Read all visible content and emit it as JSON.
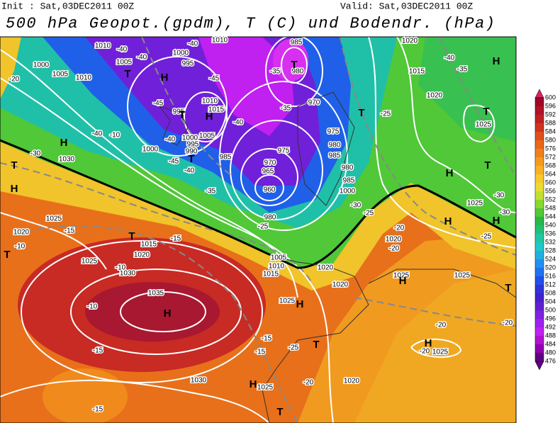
{
  "header": {
    "init": "Init : Sat,03DEC2011 00Z",
    "valid": "Valid: Sat,03DEC2011 00Z",
    "title": "500 hPa Geopot.(gpdm), T (C) und Bodendr. (hPa)"
  },
  "legend": {
    "ticks": [
      600,
      596,
      592,
      588,
      584,
      580,
      576,
      572,
      568,
      564,
      560,
      556,
      552,
      548,
      544,
      540,
      536,
      532,
      528,
      524,
      520,
      516,
      512,
      508,
      504,
      500,
      496,
      492,
      488,
      484,
      480,
      476
    ],
    "colors": [
      "#d8206a",
      "#a00828",
      "#b01428",
      "#c02024",
      "#d0341e",
      "#e0501a",
      "#e8681a",
      "#f0801c",
      "#f59a20",
      "#f8b026",
      "#f8c82c",
      "#e8dc30",
      "#c0e030",
      "#88d830",
      "#50c838",
      "#28b848",
      "#20c078",
      "#20c8a0",
      "#20c8c8",
      "#20b0e0",
      "#2090f0",
      "#2070f0",
      "#2050e8",
      "#3034d8",
      "#4420d0",
      "#6020d0",
      "#8020e0",
      "#a020f0",
      "#c020f0",
      "#b010d0",
      "#9000b0",
      "#600080"
    ]
  },
  "map_labels": {
    "pressure": [
      1010,
      1000,
      1005,
      1010,
      1005,
      1000,
      995,
      1010,
      985,
      980,
      970,
      1010,
      1015,
      995,
      1005,
      995,
      990,
      1000,
      1000,
      985,
      975,
      975,
      980,
      985,
      970,
      965,
      960,
      980,
      985,
      1000,
      980,
      1030,
      1025,
      1020,
      1015,
      1020,
      1025,
      1030,
      1035,
      1005,
      1010,
      1015,
      1020,
      1020,
      1025,
      1025,
      1025,
      1025,
      1030,
      1025,
      1020,
      1025,
      1025,
      1020,
      1015,
      1020,
      1020
    ],
    "temperature": [
      -40,
      -40,
      -40,
      -45,
      -45,
      -40,
      -35,
      -35,
      -40,
      -45,
      -40,
      -35,
      -35,
      -40,
      -25,
      -30,
      -20,
      -10,
      -40,
      -30,
      -25,
      -25,
      -30,
      -30,
      -20,
      -20,
      -15,
      -15,
      -10,
      -10,
      -10,
      -15,
      -15,
      -15,
      -25,
      -20,
      -20,
      -20,
      -20,
      -15,
      -25
    ],
    "markers": [
      "T",
      "H",
      "T",
      "H",
      "T",
      "H",
      "H",
      "T",
      "T",
      "H",
      "T",
      "H",
      "T",
      "H",
      "T",
      "T",
      "H",
      "H",
      "H",
      "T",
      "H",
      "H",
      "T",
      "T",
      "H",
      "T"
    ]
  }
}
